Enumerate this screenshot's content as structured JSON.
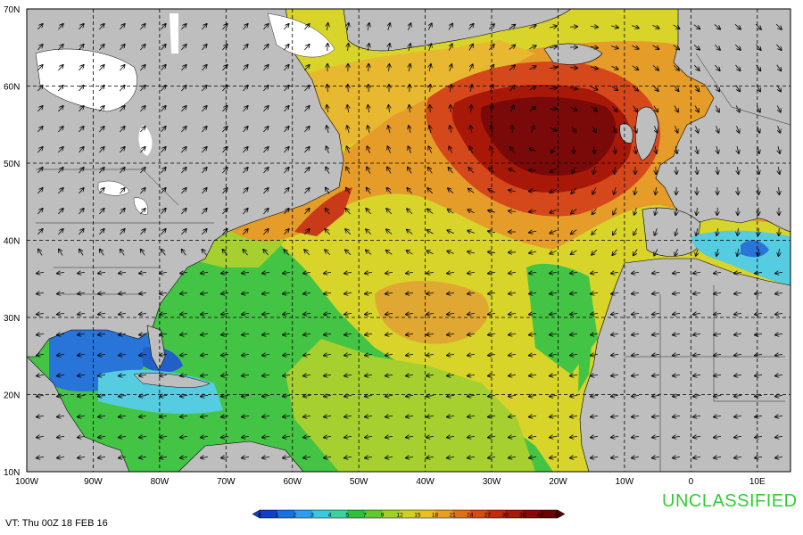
{
  "map": {
    "lat_labels": [
      "70N",
      "60N",
      "50N",
      "40N",
      "30N",
      "20N",
      "10N"
    ],
    "lon_labels": [
      "100W",
      "90W",
      "80W",
      "70W",
      "60W",
      "50W",
      "40W",
      "30W",
      "20W",
      "10W",
      "0",
      "10E"
    ],
    "extent": {
      "lon_min": -100,
      "lon_max": 15,
      "lat_min": 10,
      "lat_max": 70
    },
    "colors": {
      "land": "#bebebe",
      "ice": "#ffffff",
      "ocean_calm": "#2874d8",
      "ocean_low": "#55cce0",
      "ocean_moderate": "#44c444",
      "ocean_mid": "#a6d030",
      "ocean_elevated": "#e8d42c",
      "ocean_high": "#e59c28",
      "ocean_storm": "#d4481c",
      "ocean_severe": "#7a0a0a"
    },
    "arrow_color": "#000000",
    "grid_style": "dashed"
  },
  "colorbar": {
    "tick_labels": [
      "0",
      "1",
      "2",
      "3",
      "4",
      "5",
      "7",
      "9",
      "12",
      "15",
      "18",
      "21",
      "24",
      "27",
      "30",
      "36",
      "42",
      "48"
    ],
    "colors": [
      "#1040c8",
      "#1a6ee8",
      "#2f9cf0",
      "#3cc6e0",
      "#40d0a0",
      "#30c040",
      "#60c830",
      "#a0d020",
      "#d0d020",
      "#e8c020",
      "#e8a020",
      "#e07018",
      "#d84818",
      "#c82810",
      "#a81808",
      "#880808",
      "#680404"
    ]
  },
  "valid_time": "VT: Thu 00Z 18 FEB 16",
  "classification": "UNCLASSIFIED"
}
